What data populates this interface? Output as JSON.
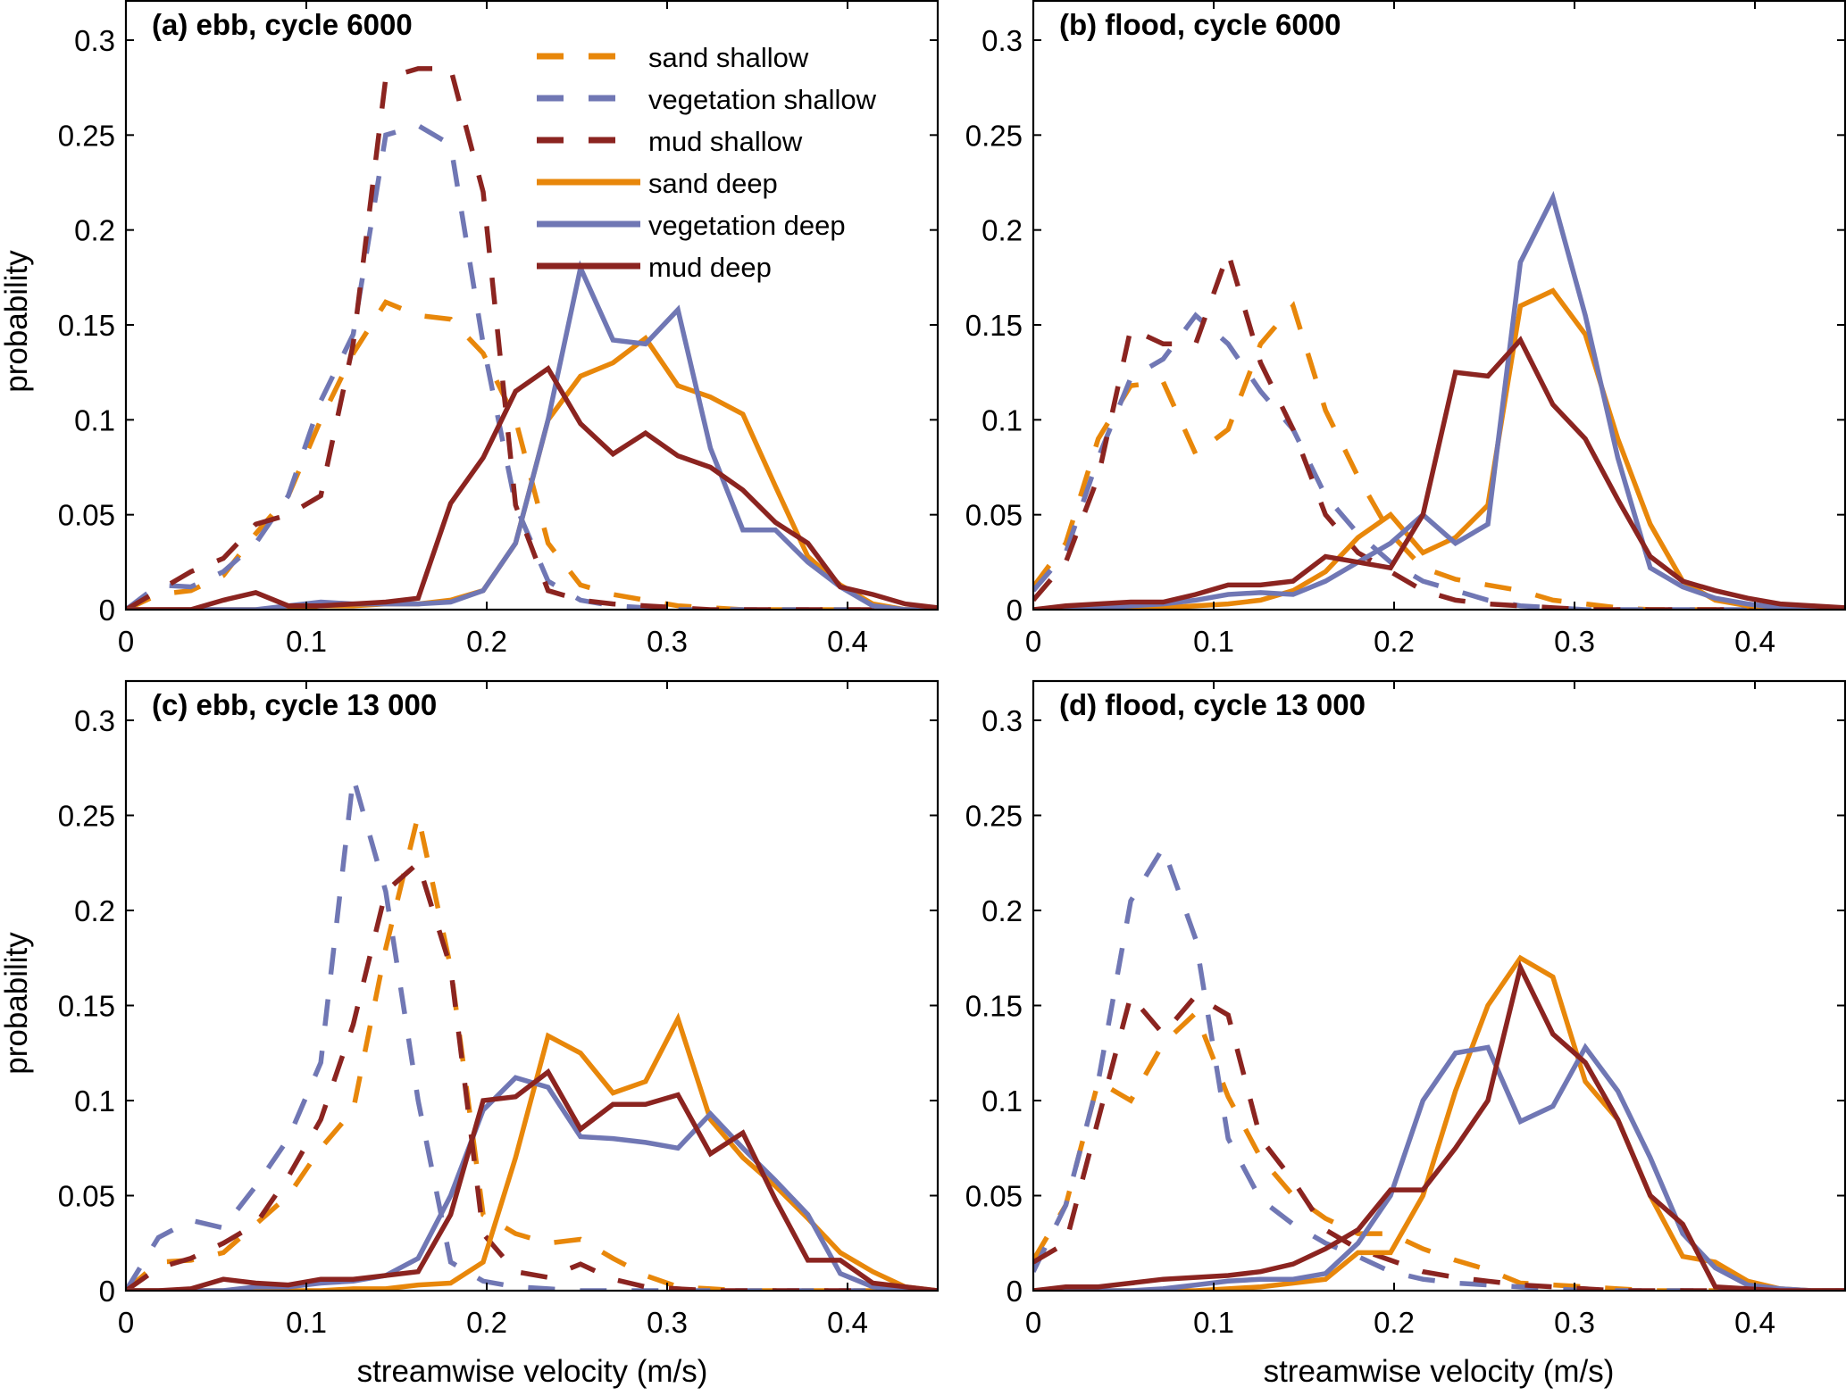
{
  "chart_data": {
    "type": "line",
    "x": [
      0,
      0.018,
      0.036,
      0.054,
      0.072,
      0.09,
      0.108,
      0.126,
      0.144,
      0.162,
      0.18,
      0.198,
      0.216,
      0.234,
      0.252,
      0.27,
      0.288,
      0.306,
      0.324,
      0.342,
      0.36,
      0.378,
      0.396,
      0.414,
      0.432,
      0.45
    ],
    "xlabel": "streamwise velocity (m/s)",
    "ylabel": "probability",
    "xlim": [
      0,
      0.45
    ],
    "ylim": [
      0,
      0.32
    ],
    "xticks": [
      0,
      0.1,
      0.2,
      0.3,
      0.4
    ],
    "xtick_labels": [
      "0",
      "0.1",
      "0.2",
      "0.3",
      "0.4"
    ],
    "yticks": [
      0,
      0.05,
      0.1,
      0.15,
      0.2,
      0.25,
      0.3
    ],
    "ytick_labels": [
      "0",
      "0.05",
      "0.1",
      "0.15",
      "0.2",
      "0.25",
      "0.3"
    ],
    "grid": false,
    "legend": {
      "placement": "top-right of panel (a)",
      "entries": [
        {
          "label": "sand shallow",
          "color": "#E8870A",
          "style": "dashed"
        },
        {
          "label": "vegetation shallow",
          "color": "#7077B4",
          "style": "dashed"
        },
        {
          "label": "mud shallow",
          "color": "#8B2420",
          "style": "dashed"
        },
        {
          "label": "sand deep",
          "color": "#E8870A",
          "style": "solid"
        },
        {
          "label": "vegetation deep",
          "color": "#7077B4",
          "style": "solid"
        },
        {
          "label": "mud deep",
          "color": "#8B2420",
          "style": "solid"
        }
      ]
    },
    "panels": [
      {
        "title": "(a) ebb, cycle 6000",
        "series": [
          {
            "name": "sand shallow",
            "values": [
              0,
              0.008,
              0.01,
              0.018,
              0.04,
              0.06,
              0.1,
              0.135,
              0.162,
              0.155,
              0.153,
              0.135,
              0.1,
              0.035,
              0.013,
              0.008,
              0.005,
              0.002,
              0.001,
              0,
              0,
              0,
              0,
              0,
              0,
              0
            ]
          },
          {
            "name": "vegetation shallow",
            "values": [
              0,
              0.013,
              0.012,
              0.02,
              0.035,
              0.06,
              0.11,
              0.145,
              0.25,
              0.255,
              0.245,
              0.14,
              0.055,
              0.015,
              0.005,
              0.002,
              0.001,
              0,
              0,
              0,
              0,
              0,
              0,
              0,
              0,
              0
            ]
          },
          {
            "name": "mud shallow",
            "values": [
              0,
              0.01,
              0.02,
              0.027,
              0.045,
              0.05,
              0.06,
              0.14,
              0.28,
              0.285,
              0.285,
              0.22,
              0.055,
              0.01,
              0.005,
              0.003,
              0.002,
              0.001,
              0,
              0,
              0,
              0,
              0,
              0,
              0,
              0
            ]
          },
          {
            "name": "sand deep",
            "values": [
              0,
              0,
              0,
              0,
              0,
              0,
              0.002,
              0.002,
              0.003,
              0.003,
              0.005,
              0.01,
              0.035,
              0.1,
              0.123,
              0.13,
              0.143,
              0.118,
              0.112,
              0.103,
              0.065,
              0.028,
              0.013,
              0.003,
              0,
              0
            ]
          },
          {
            "name": "vegetation deep",
            "values": [
              0,
              0,
              0,
              0,
              0,
              0.002,
              0.004,
              0.003,
              0.003,
              0.003,
              0.004,
              0.01,
              0.035,
              0.1,
              0.18,
              0.142,
              0.14,
              0.158,
              0.085,
              0.042,
              0.042,
              0.025,
              0.012,
              0.002,
              0,
              0
            ]
          },
          {
            "name": "mud deep",
            "values": [
              0,
              0,
              0,
              0.005,
              0.009,
              0.002,
              0.002,
              0.003,
              0.004,
              0.006,
              0.056,
              0.08,
              0.115,
              0.127,
              0.098,
              0.082,
              0.093,
              0.081,
              0.075,
              0.063,
              0.046,
              0.035,
              0.012,
              0.008,
              0.003,
              0.001
            ]
          }
        ]
      },
      {
        "title": "(b) flood, cycle 6000",
        "series": [
          {
            "name": "sand shallow",
            "values": [
              0.012,
              0.035,
              0.09,
              0.118,
              0.12,
              0.082,
              0.095,
              0.14,
              0.16,
              0.105,
              0.07,
              0.04,
              0.022,
              0.016,
              0.013,
              0.01,
              0.005,
              0.003,
              0.001,
              0,
              0,
              0,
              0,
              0,
              0,
              0
            ]
          },
          {
            "name": "vegetation shallow",
            "values": [
              0.01,
              0.03,
              0.08,
              0.122,
              0.132,
              0.155,
              0.14,
              0.115,
              0.095,
              0.06,
              0.04,
              0.025,
              0.015,
              0.01,
              0.005,
              0.002,
              0.001,
              0,
              0,
              0,
              0,
              0,
              0,
              0,
              0,
              0
            ]
          },
          {
            "name": "mud shallow",
            "values": [
              0.005,
              0.025,
              0.07,
              0.148,
              0.14,
              0.14,
              0.188,
              0.13,
              0.095,
              0.05,
              0.03,
              0.02,
              0.01,
              0.005,
              0.003,
              0.002,
              0.001,
              0,
              0,
              0,
              0,
              0,
              0,
              0,
              0,
              0
            ]
          },
          {
            "name": "sand deep",
            "values": [
              0,
              0,
              0,
              0,
              0.001,
              0.002,
              0.003,
              0.005,
              0.01,
              0.02,
              0.038,
              0.05,
              0.03,
              0.038,
              0.055,
              0.16,
              0.168,
              0.145,
              0.09,
              0.045,
              0.015,
              0.005,
              0.002,
              0.001,
              0,
              0
            ]
          },
          {
            "name": "vegetation deep",
            "values": [
              0,
              0,
              0.001,
              0.002,
              0.003,
              0.005,
              0.008,
              0.009,
              0.008,
              0.015,
              0.025,
              0.035,
              0.05,
              0.035,
              0.045,
              0.183,
              0.217,
              0.155,
              0.08,
              0.022,
              0.012,
              0.006,
              0.003,
              0.001,
              0,
              0
            ]
          },
          {
            "name": "mud deep",
            "values": [
              0,
              0.002,
              0.003,
              0.004,
              0.004,
              0.008,
              0.013,
              0.013,
              0.015,
              0.028,
              0.025,
              0.022,
              0.05,
              0.125,
              0.123,
              0.142,
              0.108,
              0.09,
              0.058,
              0.028,
              0.015,
              0.01,
              0.006,
              0.003,
              0.002,
              0.001
            ]
          }
        ]
      },
      {
        "title": "(c) ebb, cycle 13 000",
        "series": [
          {
            "name": "sand shallow",
            "values": [
              0,
              0.015,
              0.016,
              0.02,
              0.035,
              0.05,
              0.075,
              0.095,
              0.18,
              0.25,
              0.17,
              0.04,
              0.03,
              0.025,
              0.027,
              0.017,
              0.008,
              0.002,
              0.001,
              0,
              0,
              0,
              0,
              0,
              0,
              0
            ]
          },
          {
            "name": "vegetation shallow",
            "values": [
              0,
              0.028,
              0.037,
              0.033,
              0.055,
              0.08,
              0.12,
              0.27,
              0.21,
              0.1,
              0.015,
              0.005,
              0.002,
              0.001,
              0,
              0,
              0,
              0,
              0,
              0,
              0,
              0,
              0,
              0,
              0,
              0
            ]
          },
          {
            "name": "mud shallow",
            "values": [
              0,
              0.012,
              0.017,
              0.025,
              0.035,
              0.06,
              0.09,
              0.14,
              0.21,
              0.225,
              0.17,
              0.03,
              0.01,
              0.007,
              0.014,
              0.006,
              0.002,
              0.001,
              0,
              0,
              0,
              0,
              0,
              0,
              0,
              0
            ]
          },
          {
            "name": "sand deep",
            "values": [
              0,
              0,
              0,
              0,
              0,
              0,
              0,
              0.001,
              0.001,
              0.003,
              0.004,
              0.015,
              0.07,
              0.134,
              0.125,
              0.104,
              0.11,
              0.143,
              0.09,
              0.07,
              0.055,
              0.038,
              0.02,
              0.01,
              0.002,
              0
            ]
          },
          {
            "name": "vegetation deep",
            "values": [
              0,
              0,
              0,
              0,
              0.002,
              0.002,
              0.004,
              0.005,
              0.008,
              0.017,
              0.05,
              0.095,
              0.112,
              0.107,
              0.081,
              0.08,
              0.078,
              0.075,
              0.093,
              0.075,
              0.058,
              0.04,
              0.009,
              0.002,
              0,
              0
            ]
          },
          {
            "name": "mud deep",
            "values": [
              0,
              0,
              0.001,
              0.006,
              0.004,
              0.003,
              0.006,
              0.006,
              0.008,
              0.01,
              0.04,
              0.1,
              0.102,
              0.115,
              0.085,
              0.098,
              0.098,
              0.103,
              0.072,
              0.083,
              0.048,
              0.016,
              0.016,
              0.004,
              0.002,
              0
            ]
          }
        ]
      },
      {
        "title": "(d) flood, cycle 13 000",
        "series": [
          {
            "name": "sand shallow",
            "values": [
              0.016,
              0.045,
              0.11,
              0.1,
              0.13,
              0.146,
              0.102,
              0.07,
              0.05,
              0.038,
              0.03,
              0.03,
              0.022,
              0.016,
              0.011,
              0.004,
              0.003,
              0.002,
              0.001,
              0,
              0,
              0,
              0,
              0,
              0,
              0
            ]
          },
          {
            "name": "vegetation shallow",
            "values": [
              0.01,
              0.045,
              0.11,
              0.205,
              0.233,
              0.185,
              0.08,
              0.048,
              0.035,
              0.025,
              0.018,
              0.01,
              0.006,
              0.004,
              0.003,
              0.002,
              0.001,
              0,
              0,
              0,
              0,
              0,
              0,
              0,
              0,
              0
            ]
          },
          {
            "name": "mud shallow",
            "values": [
              0.015,
              0.025,
              0.09,
              0.155,
              0.135,
              0.155,
              0.145,
              0.08,
              0.058,
              0.032,
              0.022,
              0.016,
              0.01,
              0.007,
              0.005,
              0.003,
              0.002,
              0.001,
              0,
              0,
              0,
              0,
              0,
              0,
              0,
              0
            ]
          },
          {
            "name": "sand deep",
            "values": [
              0,
              0,
              0,
              0,
              0,
              0,
              0.001,
              0.002,
              0.004,
              0.006,
              0.02,
              0.02,
              0.05,
              0.105,
              0.15,
              0.175,
              0.165,
              0.11,
              0.09,
              0.05,
              0.018,
              0.015,
              0.005,
              0.001,
              0,
              0
            ]
          },
          {
            "name": "vegetation deep",
            "values": [
              0,
              0,
              0,
              0,
              0.001,
              0.003,
              0.005,
              0.006,
              0.006,
              0.009,
              0.025,
              0.05,
              0.1,
              0.125,
              0.128,
              0.089,
              0.097,
              0.128,
              0.105,
              0.07,
              0.03,
              0.012,
              0.003,
              0.001,
              0,
              0
            ]
          },
          {
            "name": "mud deep",
            "values": [
              0,
              0.002,
              0.002,
              0.004,
              0.006,
              0.007,
              0.008,
              0.01,
              0.014,
              0.022,
              0.032,
              0.053,
              0.053,
              0.075,
              0.1,
              0.17,
              0.135,
              0.12,
              0.09,
              0.05,
              0.035,
              0.002,
              0.001,
              0,
              0,
              0
            ]
          }
        ]
      }
    ]
  }
}
